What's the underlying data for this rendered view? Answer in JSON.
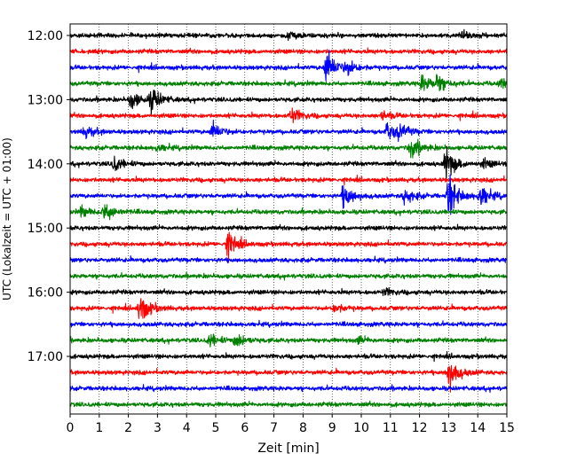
{
  "chart_data": {
    "type": "line",
    "title": "",
    "xlabel": "Zeit  [min]",
    "ylabel": "UTC (Lokalzeit = UTC + 01:00)",
    "xlim": [
      0,
      15
    ],
    "x_ticks": [
      "0",
      "1",
      "2",
      "3",
      "4",
      "5",
      "6",
      "7",
      "8",
      "9",
      "10",
      "11",
      "12",
      "13",
      "14",
      "15"
    ],
    "y_ticks": [
      "12:00",
      "13:00",
      "14:00",
      "15:00",
      "16:00",
      "17:00"
    ],
    "trace_interval_minutes": 15,
    "start_time": "12:00",
    "grid": "vertical dotted",
    "colors": [
      "#000000",
      "#ff0000",
      "#0000ff",
      "#008000"
    ],
    "series": [
      {
        "start": "12:00",
        "color": "#000000",
        "events": [
          {
            "t": 7.5,
            "amp": 0.22
          },
          {
            "t": 13.4,
            "amp": 0.25
          }
        ]
      },
      {
        "start": "12:15",
        "color": "#ff0000",
        "events": []
      },
      {
        "start": "12:30",
        "color": "#0000ff",
        "events": [
          {
            "t": 8.8,
            "amp": 0.85
          },
          {
            "t": 9.5,
            "amp": 0.35
          }
        ]
      },
      {
        "start": "12:45",
        "color": "#008000",
        "events": [
          {
            "t": 12.1,
            "amp": 0.4
          },
          {
            "t": 12.6,
            "amp": 0.45
          },
          {
            "t": 14.8,
            "amp": 0.3
          }
        ]
      },
      {
        "start": "13:00",
        "color": "#000000",
        "events": [
          {
            "t": 2.1,
            "amp": 0.45
          },
          {
            "t": 2.8,
            "amp": 0.55
          }
        ]
      },
      {
        "start": "13:15",
        "color": "#ff0000",
        "events": [
          {
            "t": 7.6,
            "amp": 0.35
          },
          {
            "t": 10.7,
            "amp": 0.2
          }
        ]
      },
      {
        "start": "13:30",
        "color": "#0000ff",
        "events": [
          {
            "t": 0.5,
            "amp": 0.3
          },
          {
            "t": 4.9,
            "amp": 0.4
          },
          {
            "t": 10.9,
            "amp": 0.4
          },
          {
            "t": 11.3,
            "amp": 0.3
          }
        ]
      },
      {
        "start": "13:45",
        "color": "#008000",
        "events": [
          {
            "t": 11.7,
            "amp": 0.55
          },
          {
            "t": 3.0,
            "amp": 0.15
          }
        ]
      },
      {
        "start": "14:00",
        "color": "#000000",
        "events": [
          {
            "t": 1.5,
            "amp": 0.35
          },
          {
            "t": 12.9,
            "amp": 0.75
          },
          {
            "t": 14.2,
            "amp": 0.2
          }
        ]
      },
      {
        "start": "14:15",
        "color": "#ff0000",
        "events": []
      },
      {
        "start": "14:30",
        "color": "#0000ff",
        "events": [
          {
            "t": 9.4,
            "amp": 0.6
          },
          {
            "t": 13.0,
            "amp": 1.0
          },
          {
            "t": 14.1,
            "amp": 0.55
          },
          {
            "t": 11.5,
            "amp": 0.35
          }
        ]
      },
      {
        "start": "14:45",
        "color": "#008000",
        "events": [
          {
            "t": 1.2,
            "amp": 0.5
          },
          {
            "t": 0.4,
            "amp": 0.25
          }
        ]
      },
      {
        "start": "15:00",
        "color": "#000000",
        "events": []
      },
      {
        "start": "15:15",
        "color": "#ff0000",
        "events": [
          {
            "t": 5.4,
            "amp": 0.6
          }
        ]
      },
      {
        "start": "15:30",
        "color": "#0000ff",
        "events": []
      },
      {
        "start": "15:45",
        "color": "#008000",
        "events": []
      },
      {
        "start": "16:00",
        "color": "#000000",
        "events": [
          {
            "t": 10.8,
            "amp": 0.15
          }
        ]
      },
      {
        "start": "16:15",
        "color": "#ff0000",
        "events": [
          {
            "t": 2.4,
            "amp": 0.75
          },
          {
            "t": 9.1,
            "amp": 0.2
          }
        ]
      },
      {
        "start": "16:30",
        "color": "#0000ff",
        "events": []
      },
      {
        "start": "16:45",
        "color": "#008000",
        "events": [
          {
            "t": 4.8,
            "amp": 0.3
          },
          {
            "t": 5.7,
            "amp": 0.35
          },
          {
            "t": 9.9,
            "amp": 0.15
          }
        ]
      },
      {
        "start": "17:00",
        "color": "#000000",
        "events": []
      },
      {
        "start": "17:15",
        "color": "#ff0000",
        "events": [
          {
            "t": 13.0,
            "amp": 0.8
          }
        ]
      },
      {
        "start": "17:30",
        "color": "#0000ff",
        "events": []
      },
      {
        "start": "17:45",
        "color": "#008000",
        "events": []
      }
    ]
  }
}
